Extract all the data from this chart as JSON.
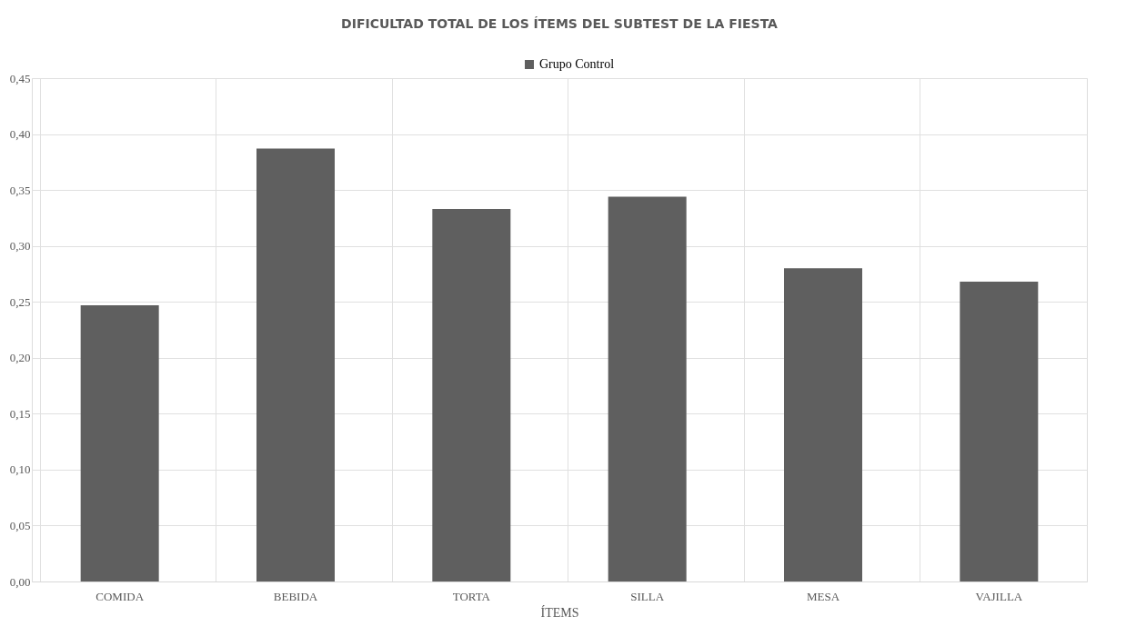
{
  "chart_data": {
    "type": "bar",
    "title": "DIFICULTAD TOTAL DE LOS ÍTEMS DEL SUBTEST DE LA FIESTA",
    "xlabel": "ÍTEMS",
    "categories": [
      "COMIDA",
      "BEBIDA",
      "TORTA",
      "SILLA",
      "MESA",
      "VAJILLA"
    ],
    "series": [
      {
        "name": "Grupo Control",
        "color": "#5f5f5f",
        "values": [
          0.247,
          0.387,
          0.333,
          0.344,
          0.28,
          0.268
        ]
      }
    ],
    "ylim": [
      0,
      0.45
    ],
    "yticks": [
      {
        "value": 0,
        "label": "0,00"
      },
      {
        "value": 0.05,
        "label": "0,05"
      },
      {
        "value": 0.1,
        "label": "0,10"
      },
      {
        "value": 0.15,
        "label": "0,15"
      },
      {
        "value": 0.2,
        "label": "0,20"
      },
      {
        "value": 0.25,
        "label": "0,25"
      },
      {
        "value": 0.3,
        "label": "0,30"
      },
      {
        "value": 0.35,
        "label": "0,35"
      },
      {
        "value": 0.4,
        "label": "0,40"
      },
      {
        "value": 0.45,
        "label": "0,45"
      }
    ],
    "grid": true,
    "legend": "top"
  }
}
